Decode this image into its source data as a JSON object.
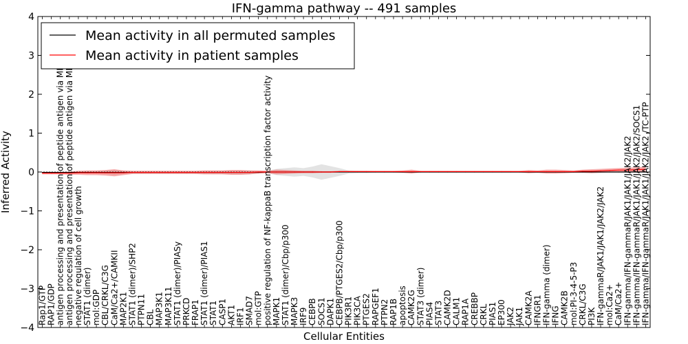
{
  "chart_data": {
    "type": "line",
    "title": "IFN-gamma pathway -- 491 samples",
    "xlabel": "Cellular Entities",
    "ylabel": "Inferred Activity",
    "ylim": [
      -4,
      4
    ],
    "yticks": [
      -4,
      -3,
      -2,
      -1,
      0,
      1,
      2,
      3,
      4
    ],
    "ytick_labels": [
      "−4",
      "−3",
      "−2",
      "−1",
      "0",
      "1",
      "2",
      "3",
      "4"
    ],
    "legend_position": "top-left",
    "categories": [
      "Rap1/GTP",
      "RAP1/GDP",
      "antigen processing and presentation of peptide antigen via MHC class I",
      "antigen processing and presentation of peptide antigen via MHC class II",
      "negative regulation of cell growth",
      "STAT1 (dimer)",
      "mol:GDP",
      "CBL/CRKL/C3G",
      "CaM/Ca2+/CAMKII",
      "MAP2K1",
      "STAT1 (dimer)/SHP2",
      "PTPN11",
      "CBL",
      "MAP3K1",
      "MAP3K11",
      "STAT1 (dimer)/PIASy",
      "PRKCD",
      "FRAP1",
      "STAT1 (dimer)/PIAS1",
      "STAT1",
      "CASP1",
      "AKT1",
      "IRF1",
      "SMAD7",
      "mol:GTP",
      "positive regulation of NF-kappaB transcription factor activity",
      "MAPK1",
      "STAT1 (dimer)/Cbp/p300",
      "MAPK3",
      "IRF9",
      "CEBPB",
      "SOCS1",
      "DAPK1",
      "CEBPB/PTGES2/Cbp/p300",
      "PIK3R1",
      "PIK3CA",
      "PTGES2",
      "RAPGEF1",
      "PTPN2",
      "RAP1B",
      "apoptosis",
      "CAMK2G",
      "STAT3 (dimer)",
      "PIAS4",
      "STAT3",
      "CAMK2D",
      "CALM1",
      "RAP1A",
      "CREBBP",
      "CRKL",
      "PIAS1",
      "EP300",
      "JAK2",
      "JAK1",
      "CAMK2A",
      "IFNGR1",
      "IFN-gamma (dimer)",
      "IFNG",
      "CAMK2B",
      "mol:PI-3-4-5-P3",
      "CRKL/C3G",
      "PI3K",
      "IFN-gammaR/JAK1/JAK1/JAK2/JAK2",
      "mol:Ca2+",
      "CaM/Ca2+",
      "IFN-gamma/IFN-gammaR/JAK1/JAK1/JAK2/JAK2",
      "IFN-gamma/IFN-gammaR/JAK1/JAK1/JAK2/JAK2/SOCS1",
      "IFN-gamma/IFN-gammaR/JAK1/JAK1/JAK2/JAK2 /TC-PTP"
    ],
    "series": [
      {
        "name": "Mean activity in all permuted samples",
        "color": "#000000",
        "values": [
          -0.01,
          -0.01,
          -0.01,
          -0.01,
          -0.01,
          -0.01,
          -0.01,
          -0.01,
          -0.01,
          -0.01,
          -0.01,
          -0.01,
          -0.01,
          -0.01,
          -0.01,
          -0.01,
          -0.01,
          -0.01,
          -0.01,
          -0.01,
          -0.01,
          -0.01,
          -0.01,
          -0.01,
          -0.01,
          0.0,
          0.0,
          0.0,
          0.0,
          0.0,
          0.0,
          0.0,
          0.0,
          0.0,
          0.0,
          0.0,
          0.0,
          0.0,
          0.0,
          0.0,
          0.0,
          0.0,
          0.0,
          0.0,
          0.0,
          0.0,
          0.0,
          0.0,
          0.0,
          0.0,
          0.0,
          0.0,
          0.0,
          0.0,
          0.0,
          0.0,
          0.0,
          0.0,
          0.0,
          0.0,
          0.0,
          0.0,
          0.0,
          0.0,
          0.0,
          0.0,
          0.0,
          0.0
        ],
        "band_halfwidth": [
          0.02,
          0.02,
          0.02,
          0.02,
          0.02,
          0.03,
          0.03,
          0.04,
          0.06,
          0.04,
          0.03,
          0.03,
          0.03,
          0.03,
          0.03,
          0.03,
          0.03,
          0.03,
          0.04,
          0.04,
          0.04,
          0.05,
          0.05,
          0.05,
          0.03,
          0.03,
          0.08,
          0.1,
          0.12,
          0.1,
          0.14,
          0.2,
          0.15,
          0.1,
          0.04,
          0.03,
          0.03,
          0.02,
          0.02,
          0.02,
          0.02,
          0.02,
          0.02,
          0.02,
          0.02,
          0.02,
          0.02,
          0.02,
          0.02,
          0.02,
          0.02,
          0.02,
          0.02,
          0.02,
          0.02,
          0.02,
          0.02,
          0.02,
          0.02,
          0.02,
          0.02,
          0.02,
          0.02,
          0.02,
          0.02,
          0.02,
          0.02,
          0.02
        ]
      },
      {
        "name": "Mean activity in patient samples",
        "color": "#ff0000",
        "values": [
          -0.03,
          -0.03,
          -0.03,
          -0.03,
          -0.02,
          -0.02,
          -0.02,
          -0.02,
          -0.02,
          -0.02,
          -0.01,
          -0.01,
          -0.01,
          -0.01,
          -0.01,
          -0.01,
          -0.01,
          -0.01,
          -0.01,
          -0.01,
          -0.01,
          -0.01,
          -0.01,
          -0.01,
          0.0,
          0.0,
          0.0,
          0.0,
          0.0,
          0.0,
          0.0,
          0.0,
          0.0,
          0.01,
          0.01,
          0.01,
          0.01,
          0.01,
          0.01,
          0.01,
          0.01,
          0.01,
          0.01,
          0.01,
          0.01,
          0.01,
          0.01,
          0.01,
          0.01,
          0.01,
          0.01,
          0.01,
          0.01,
          0.01,
          0.01,
          0.01,
          0.01,
          0.01,
          0.01,
          0.01,
          0.02,
          0.02,
          0.03,
          0.04,
          0.05,
          0.05,
          0.06,
          0.07
        ],
        "band_halfwidth": [
          0.03,
          0.03,
          0.03,
          0.04,
          0.05,
          0.06,
          0.06,
          0.07,
          0.09,
          0.06,
          0.04,
          0.04,
          0.04,
          0.04,
          0.04,
          0.04,
          0.04,
          0.04,
          0.05,
          0.05,
          0.05,
          0.06,
          0.06,
          0.05,
          0.04,
          0.03,
          0.06,
          0.05,
          0.04,
          0.03,
          0.03,
          0.02,
          0.02,
          0.02,
          0.02,
          0.02,
          0.02,
          0.02,
          0.02,
          0.02,
          0.03,
          0.05,
          0.02,
          0.02,
          0.02,
          0.02,
          0.02,
          0.02,
          0.02,
          0.02,
          0.02,
          0.02,
          0.02,
          0.02,
          0.04,
          0.03,
          0.05,
          0.05,
          0.04,
          0.03,
          0.04,
          0.05,
          0.05,
          0.05,
          0.05,
          0.06,
          0.06,
          0.07
        ]
      }
    ]
  }
}
